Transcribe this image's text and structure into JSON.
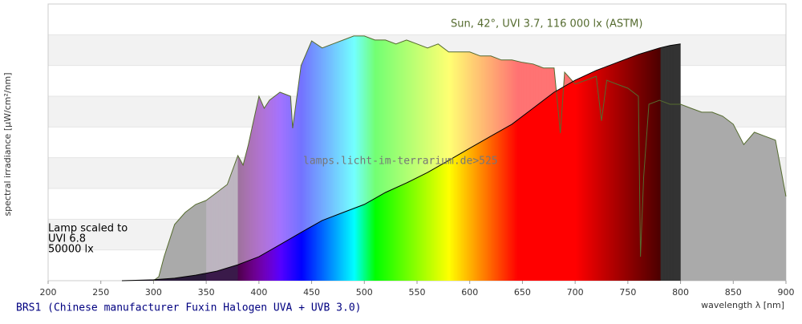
{
  "chart_data": {
    "type": "area",
    "title": "BRS1 (Chinese manufacturer Fuxin Halogen UVA + UVB 3.0)",
    "annotations": [
      "Sun, 42°, UVI 3.7, 116 000 lx (ASTM)",
      "lamps.licht-im-terrarium.de>525",
      "Lamp scaled to",
      "UVI 6.8",
      "50000 lx"
    ],
    "xlabel": "wavelength λ [nm]",
    "ylabel": "spectral irradiance [µW/cm²/nm]",
    "xlim": [
      200,
      900
    ],
    "xticks": [
      200,
      250,
      300,
      350,
      400,
      450,
      500,
      550,
      600,
      650,
      700,
      750,
      800,
      850,
      900
    ],
    "ylim": [
      0,
      90
    ],
    "ygrid": [
      0,
      10,
      20,
      30,
      40,
      50,
      60,
      70,
      80,
      90
    ],
    "series": [
      {
        "name": "Sun",
        "color": "#556b2f",
        "x": [
          300,
          305,
          310,
          315,
          320,
          330,
          340,
          350,
          360,
          370,
          380,
          385,
          390,
          395,
          400,
          405,
          410,
          420,
          430,
          432,
          440,
          450,
          460,
          470,
          480,
          490,
          500,
          510,
          520,
          530,
          540,
          550,
          560,
          570,
          580,
          590,
          600,
          610,
          620,
          630,
          640,
          650,
          660,
          670,
          680,
          686,
          690,
          700,
          710,
          720,
          725,
          730,
          740,
          750,
          760,
          762,
          765,
          770,
          780,
          790,
          800,
          810,
          820,
          830,
          840,
          850,
          860,
          870,
          880,
          890,
          900
        ],
        "values": [
          0,
          1.3,
          7.8,
          13,
          18.3,
          22.2,
          24.8,
          26.1,
          28.7,
          31.3,
          40.7,
          37.6,
          44.3,
          52.2,
          60,
          56.1,
          58.7,
          61.3,
          60,
          49.6,
          70,
          78,
          75.7,
          77,
          78.3,
          79.6,
          79.6,
          78.3,
          78.3,
          77,
          78.3,
          77,
          75.7,
          77,
          74.4,
          74.4,
          74.4,
          73.1,
          73.1,
          71.8,
          71.8,
          71,
          70.5,
          69.2,
          69.2,
          48,
          67.8,
          64,
          65.2,
          66.5,
          52,
          65.2,
          63.9,
          62.6,
          60,
          7.8,
          33.9,
          57.4,
          58.7,
          57.4,
          57.4,
          56.1,
          54.8,
          54.8,
          53.5,
          50.9,
          44.3,
          48.3,
          47,
          45.7,
          27.4
        ]
      },
      {
        "name": "Lamp",
        "color": "#000000",
        "x": [
          270,
          300,
          320,
          340,
          360,
          380,
          400,
          420,
          440,
          460,
          480,
          500,
          520,
          540,
          560,
          580,
          600,
          620,
          640,
          660,
          680,
          700,
          720,
          740,
          760,
          780,
          790,
          800
        ],
        "values": [
          0,
          0.3,
          0.8,
          1.8,
          3.1,
          5.2,
          7.8,
          11.7,
          15.7,
          19.6,
          22.2,
          24.8,
          28.7,
          31.8,
          35.2,
          39.1,
          43.1,
          47,
          50.9,
          56.1,
          61.3,
          65.2,
          68.4,
          71,
          73.6,
          75.7,
          76.5,
          77
        ]
      }
    ]
  }
}
